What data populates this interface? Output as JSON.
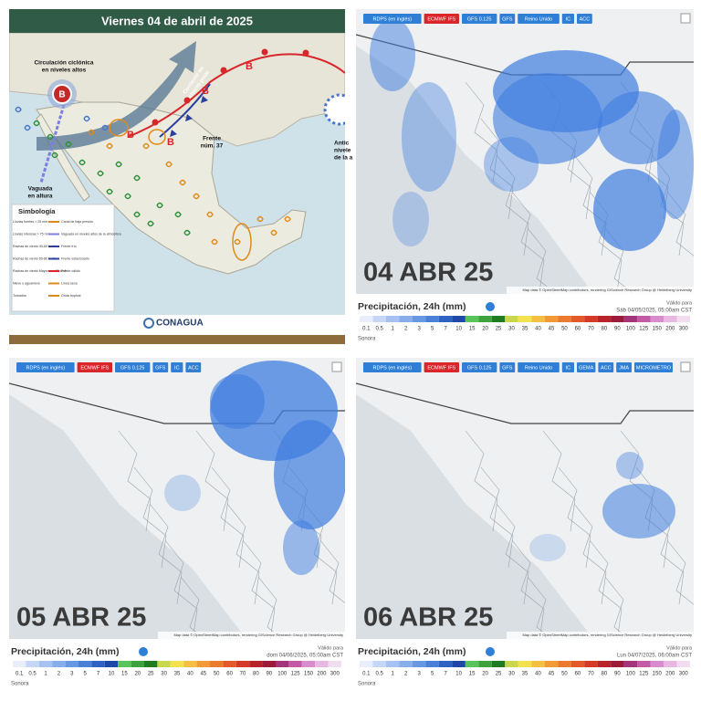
{
  "weather_map": {
    "title": "Viernes 04 de abril de 2025",
    "labels": [
      {
        "lines": [
          "Circulación ciclónica",
          "en niveles altos"
        ]
      },
      {
        "lines": [
          "B"
        ]
      },
      {
        "lines": [
          "Corriente en",
          "chorro polar"
        ]
      },
      {
        "lines": [
          "Frente",
          "núm. 37"
        ]
      },
      {
        "lines": [
          "Vaguada",
          "en altura"
        ]
      },
      {
        "lines": [
          "Antic",
          "nivele",
          "de la a"
        ]
      },
      {
        "lines": [
          "B"
        ]
      },
      {
        "lines": [
          "B"
        ]
      },
      {
        "lines": [
          "B"
        ]
      },
      {
        "lines": [
          "B"
        ]
      }
    ],
    "legend": {
      "title": "Simbología",
      "left": [
        "Lluvias fuertes > 25 mm",
        "Lluvias intensas > 75 mm",
        "Rachas de viento 40-60 km/h",
        "Rachas de viento 60-80 km/h",
        "Rachas de viento Mayores a 80 km/h",
        "Nieve o aguanieve",
        "Tornados"
      ],
      "right": [
        "Canal de baja presión",
        "Vaguada en niveles altos de la atmósfera",
        "Frente frío",
        "Frente estacionario",
        "Frente cálido",
        "Línea seca",
        "Onda tropical"
      ]
    },
    "logo": "CONAGUA"
  },
  "forecast_maps": [
    {
      "models": [
        "RDPS (en inglés)",
        "ECMWF IFS",
        "GFS 0.125",
        "GFS",
        "Reino Unido",
        "IC",
        "ACC"
      ],
      "date": "04 ABR 25",
      "legend_title": "Precipitación, 24h (mm)",
      "valid_label": "Válido para",
      "valid_time": "Sáb 04/05/2025, 05:00am CST",
      "scale": [
        0.1,
        0.5,
        1,
        2,
        3,
        5,
        7,
        10,
        15,
        20,
        25,
        30,
        35,
        40,
        45,
        50,
        60,
        70,
        80,
        90,
        100,
        125,
        150,
        200,
        300
      ],
      "region": "Sonora",
      "attribution": "Map data © OpenStreetMap contributors, rendering GIScience Research Group @ Heidelberg University"
    },
    {
      "models": [
        "RDPS (en inglés)",
        "ECMWF IFS",
        "GFS 0.125",
        "GFS",
        "IC",
        "ACC"
      ],
      "date": "05 ABR 25",
      "legend_title": "Precipitación, 24h (mm)",
      "valid_label": "Válido para",
      "valid_time": "dom 04/06/2025, 05:00am CST",
      "scale": [
        0.1,
        0.5,
        1,
        2,
        3,
        5,
        7,
        10,
        15,
        20,
        25,
        30,
        35,
        40,
        45,
        50,
        60,
        70,
        80,
        90,
        100,
        125,
        150,
        200,
        300
      ],
      "region": "Sonora",
      "attribution": "Map data © OpenStreetMap contributors, rendering GIScience Research Group @ Heidelberg University"
    },
    {
      "models": [
        "RDPS (en inglés)",
        "ECMWF IFS",
        "GFS 0.125",
        "GFS",
        "Reino Unido",
        "IC",
        "GEMA",
        "ACC",
        "JMA",
        "MICROMETRO"
      ],
      "date": "06 ABR 25",
      "legend_title": "Precipitación, 24h (mm)",
      "valid_label": "Válido para",
      "valid_time": "Lun 04/07/2025, 06:00am CST",
      "scale": [
        0.1,
        0.5,
        1,
        2,
        3,
        5,
        7,
        10,
        15,
        20,
        25,
        30,
        35,
        40,
        45,
        50,
        60,
        70,
        80,
        90,
        100,
        125,
        150,
        200,
        300
      ],
      "region": "Sonora",
      "attribution": "Map data © OpenStreetMap contributors, rendering GIScience Research Group @ Heidelberg University"
    }
  ]
}
